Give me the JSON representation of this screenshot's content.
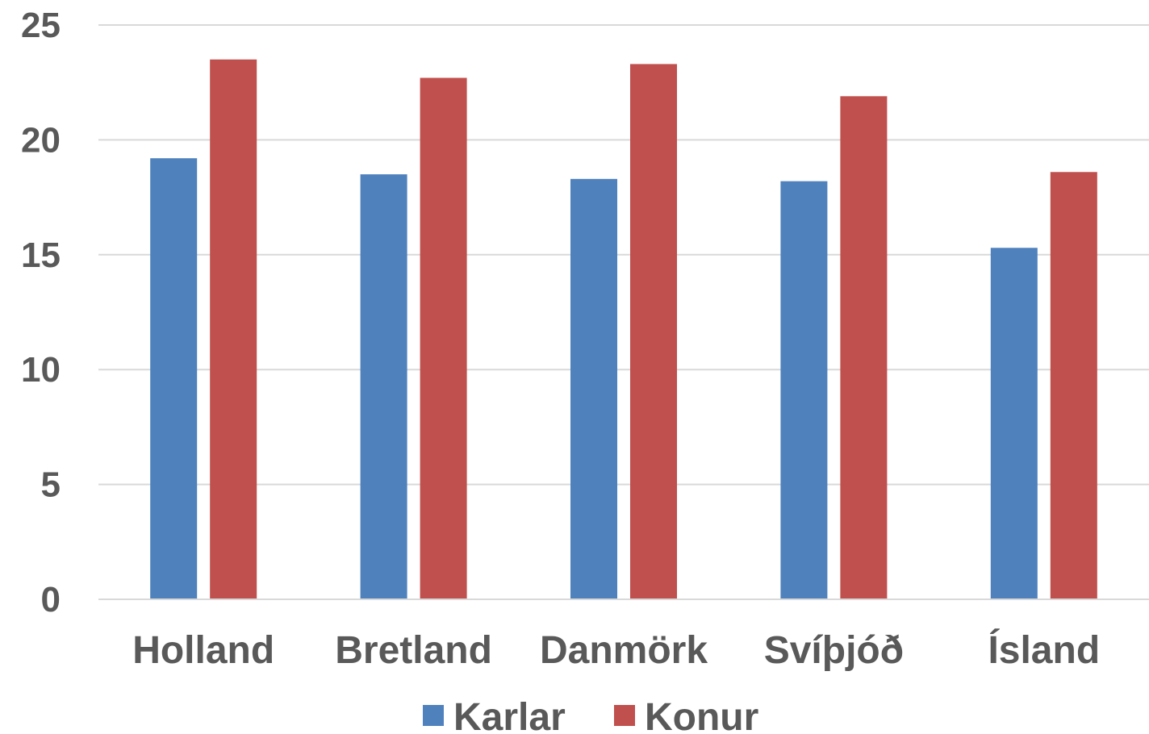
{
  "chart_data": {
    "type": "bar",
    "title": "",
    "xlabel": "",
    "ylabel": "",
    "categories": [
      "Holland",
      "Bretland",
      "Danmörk",
      "Svíþjóð",
      "Ísland"
    ],
    "series": [
      {
        "name": "Karlar",
        "color": "#4f81bd",
        "values": [
          19.2,
          18.5,
          18.3,
          18.2,
          15.3
        ]
      },
      {
        "name": "Konur",
        "color": "#c0504d",
        "values": [
          23.5,
          22.7,
          23.3,
          21.9,
          18.6
        ]
      }
    ],
    "ylim": [
      0,
      25
    ],
    "yticks": [
      0,
      5,
      10,
      15,
      20,
      25
    ],
    "ytick_labels": [
      "0",
      "5",
      "10",
      "15",
      "20",
      "25"
    ],
    "grid": true,
    "legend": "bottom-center"
  }
}
